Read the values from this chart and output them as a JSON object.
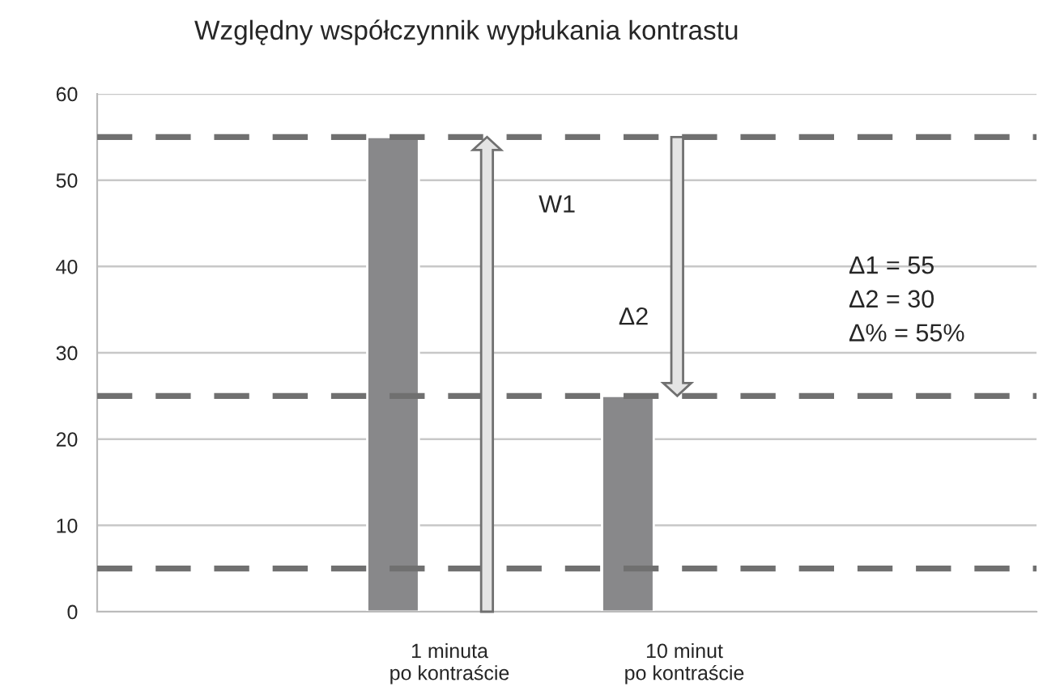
{
  "chart_data": {
    "type": "bar",
    "title": "Względny współczynnik wypłukania kontrastu",
    "categories": [
      null,
      "1 minuta\npo kontraście",
      "10 minut\npo kontraście",
      null
    ],
    "values": [
      null,
      55,
      25,
      null
    ],
    "color": "#88888a",
    "ylim": [
      0,
      60
    ],
    "yticks": [
      0,
      10,
      20,
      30,
      40,
      50,
      60
    ],
    "grid": "y",
    "ref_lines": [
      {
        "axis": "y",
        "value": 55,
        "color": "#707070",
        "line_style": "dashed"
      },
      {
        "axis": "y",
        "value": 25,
        "color": "#707070",
        "line_style": "dashed"
      },
      {
        "axis": "y",
        "value": 5,
        "color": "#707070",
        "line_style": "dashed"
      }
    ],
    "annotations": [
      "W1",
      "Δ2",
      "Δ1 = 55\nΔ2 = 30\nΔ% = 55%"
    ]
  }
}
